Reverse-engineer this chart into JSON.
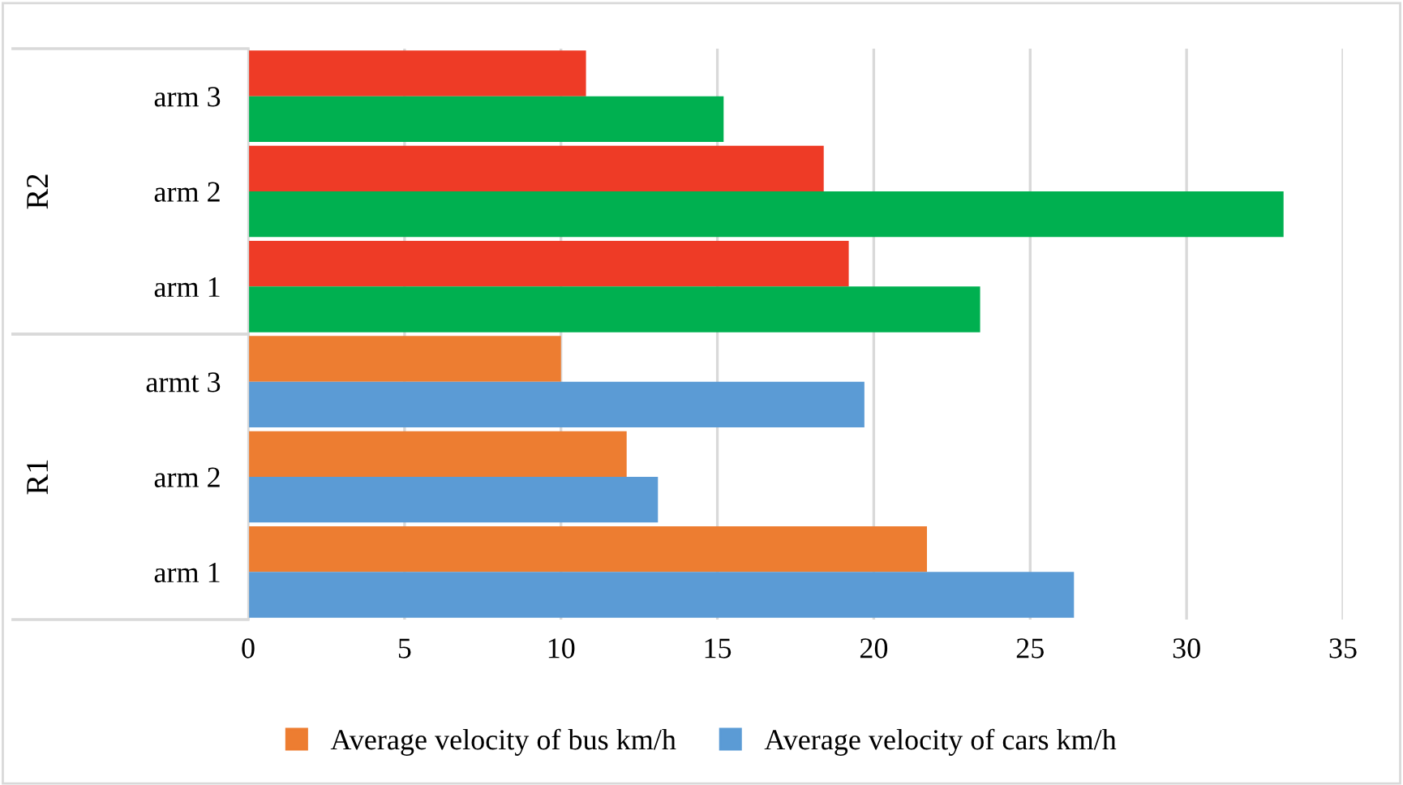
{
  "chart_data": {
    "type": "bar",
    "orientation": "horizontal",
    "categories": [
      "arm 3",
      "arm 2",
      "arm 1",
      "armt 3",
      "arm 2",
      "arm 1"
    ],
    "series": [
      {
        "name": "Average velocity of bus km/h",
        "color": "#ed7d31",
        "colors": [
          "#ee3b26",
          "#ee3b26",
          "#ee3b26",
          "#ed7d31",
          "#ed7d31",
          "#ed7d31"
        ],
        "values": [
          10.8,
          18.4,
          19.2,
          10.0,
          12.1,
          21.7
        ]
      },
      {
        "name": "Average velocity of cars km/h",
        "color": "#5b9bd5",
        "colors": [
          "#00b050",
          "#00b050",
          "#00b050",
          "#5b9bd5",
          "#5b9bd5",
          "#5b9bd5"
        ],
        "values": [
          15.2,
          33.1,
          23.4,
          19.7,
          13.1,
          26.4
        ]
      }
    ],
    "annotations": [
      "R2",
      "R1"
    ],
    "xlim": [
      0,
      35
    ],
    "xticks": [
      0,
      5,
      10,
      15,
      20,
      25,
      30,
      35
    ],
    "grid": "x",
    "legend": "bottom"
  }
}
